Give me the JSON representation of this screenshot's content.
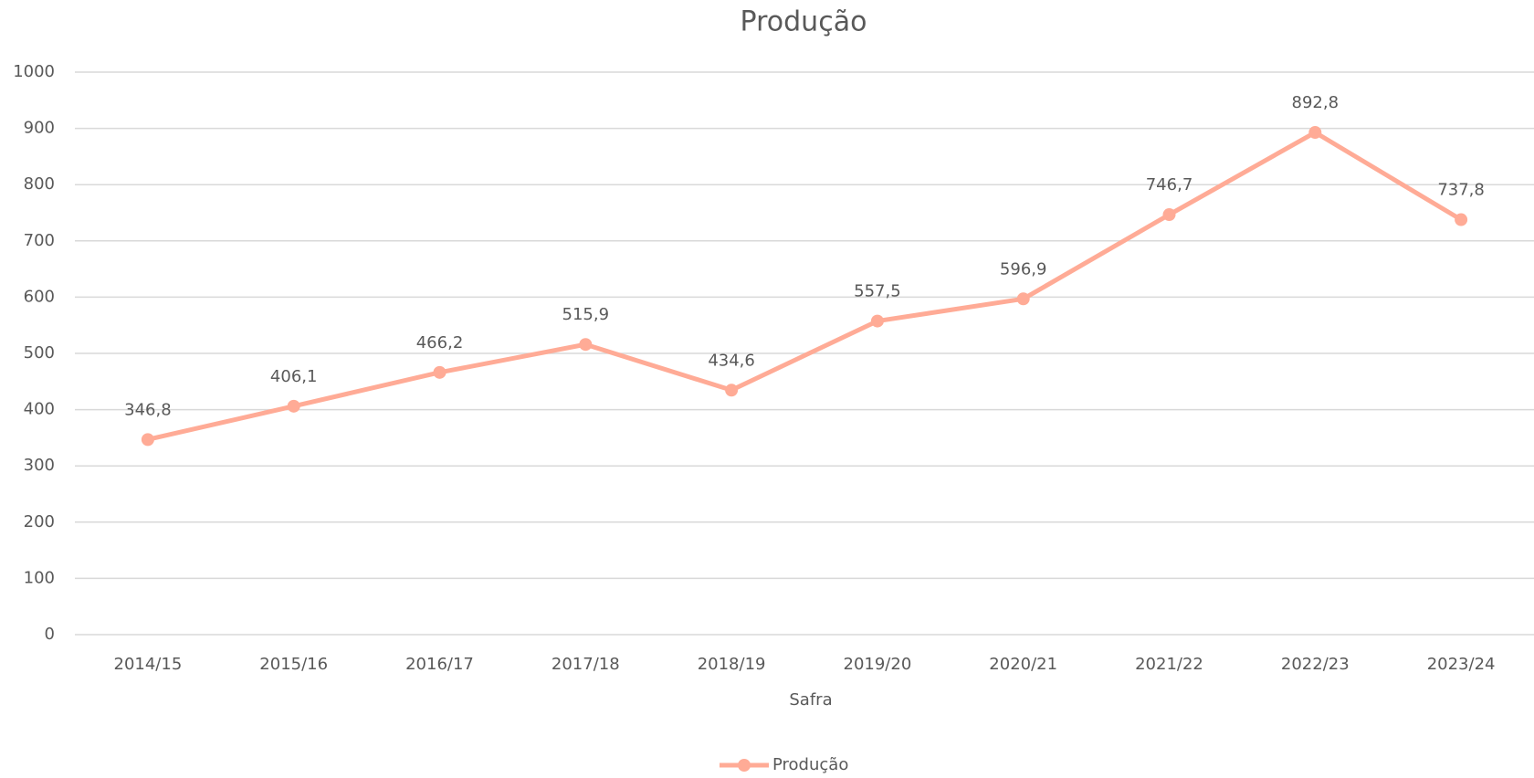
{
  "chart_data": {
    "type": "line",
    "title": "Produção",
    "x_label": "Safra",
    "categories": [
      "2014/15",
      "2015/16",
      "2016/17",
      "2017/18",
      "2018/19",
      "2019/20",
      "2020/21",
      "2021/22",
      "2022/23",
      "2023/24"
    ],
    "series": [
      {
        "name": "Produção",
        "color": "#ffab96",
        "values": [
          346.8,
          406.1,
          466.2,
          515.9,
          434.6,
          557.5,
          596.9,
          746.7,
          892.8,
          737.8
        ],
        "value_labels": [
          "346,8",
          "406,1",
          "466,2",
          "515,9",
          "434,6",
          "557,5",
          "596,9",
          "746,7",
          "892,8",
          "737,8"
        ]
      }
    ],
    "ylim": [
      0,
      1000
    ],
    "yticks": [
      0,
      100,
      200,
      300,
      400,
      500,
      600,
      700,
      800,
      900,
      1000
    ],
    "grid": true,
    "legend": "bottom"
  }
}
